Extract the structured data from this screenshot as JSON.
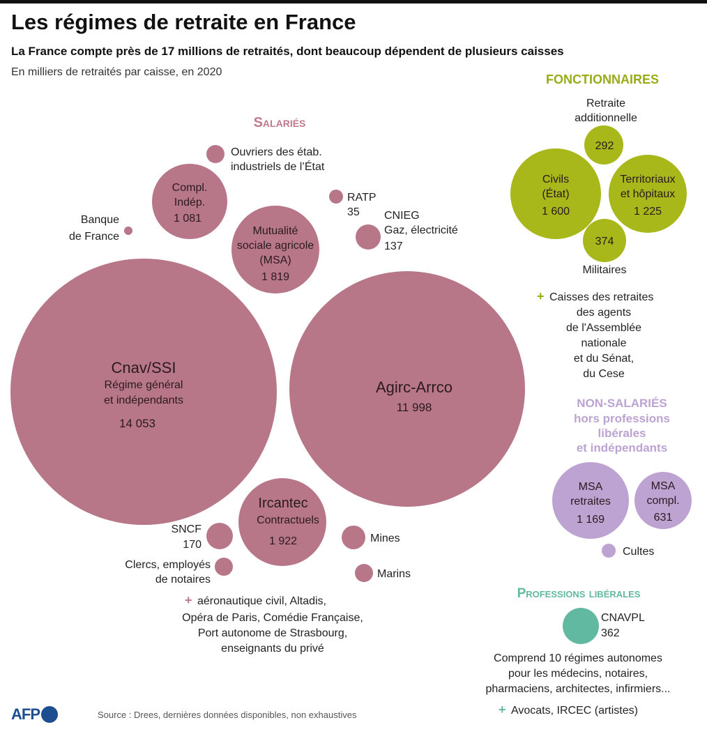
{
  "header": {
    "title": "Les régimes de retraite en France",
    "subtitle": "La France compte près de 17 millions de retraités, dont beaucoup dépendent de plusieurs caisses",
    "unit": "En milliers de retraités par caisse, en 2020"
  },
  "footer": {
    "source": "Source : Drees, dernières données disponibles, non exhaustives",
    "logo": "AFP"
  },
  "colors": {
    "salaries": "#b87789",
    "fonctionnaires": "#a8b719",
    "non_salaries": "#bca3d2",
    "liberales": "#62b9a1",
    "plus_salaries": "#c07a8c",
    "plus_fonctionnaires": "#9aab18",
    "plus_liberales": "#62b9a1"
  },
  "chart_data": {
    "type": "bubble",
    "title": "Les régimes de retraite en France",
    "unit": "milliers de retraités",
    "groups": [
      {
        "name": "Salariés",
        "items": [
          {
            "label": "Cnav/SSI",
            "detail": "Régime général et indépendants",
            "value": 14053
          },
          {
            "label": "Agirc-Arrco",
            "value": 11998
          },
          {
            "label": "Ircantec",
            "detail": "Contractuels",
            "value": 1922
          },
          {
            "label": "Mutualité sociale agricole (MSA)",
            "value": 1819
          },
          {
            "label": "Compl. Indép.",
            "value": 1081
          },
          {
            "label": "SNCF",
            "value": 170
          },
          {
            "label": "CNIEG Gaz, électricité",
            "value": 137
          },
          {
            "label": "RATP",
            "value": 35
          },
          {
            "label": "Ouvriers des étab. industriels de l’État",
            "value": null
          },
          {
            "label": "Banque de France",
            "value": null
          },
          {
            "label": "Clercs, employés de notaires",
            "value": null
          },
          {
            "label": "Mines",
            "value": null
          },
          {
            "label": "Marins",
            "value": null
          }
        ],
        "note": "aéronautique civil, Altadis, Opéra de Paris, Comédie Française, Port autonome de Strasbourg, enseignants du privé"
      },
      {
        "name": "Fonctionnaires",
        "items": [
          {
            "label": "Civils (État)",
            "value": 1600
          },
          {
            "label": "Territoriaux et hôpitaux",
            "value": 1225
          },
          {
            "label": "Militaires",
            "value": 374
          },
          {
            "label": "Retraite additionnelle",
            "value": 292
          }
        ],
        "note": "Caisses des retraites des agents de l'Assemblée nationale et du Sénat, du Cese"
      },
      {
        "name": "Non-salariés hors professions libérales et indépendants",
        "items": [
          {
            "label": "MSA retraites",
            "value": 1169
          },
          {
            "label": "MSA compl.",
            "value": 631
          },
          {
            "label": "Cultes",
            "value": null
          }
        ]
      },
      {
        "name": "Professions libérales",
        "items": [
          {
            "label": "CNAVPL",
            "value": 362
          }
        ],
        "note": "Comprend 10 régimes autonomes pour les médecins, notaires, pharmaciens, architectes, infirmiers...",
        "note2": "Avocats, IRCEC (artistes)"
      }
    ]
  },
  "texts": {
    "sal_heading": "Salariés",
    "fonc_heading": "FONCTIONNAIRES",
    "ns_heading_1": "NON-SALARIÉS",
    "ns_heading_2": "hors professions",
    "ns_heading_3": "libérales",
    "ns_heading_4": "et indépendants",
    "pl_heading": "Professions libérales",
    "cnav_name": "Cnav/SSI",
    "cnav_d1": "Régime général",
    "cnav_d2": "et indépendants",
    "cnav_val": "14 053",
    "agirc_name": "Agirc-Arrco",
    "agirc_val": "11 998",
    "msa_1": "Mutualité",
    "msa_2": "sociale agricole",
    "msa_3": "(MSA)",
    "msa_val": "1 819",
    "compl_1": "Compl.",
    "compl_2": "Indép.",
    "compl_val": "1 081",
    "ircantec_name": "Ircantec",
    "ircantec_d": "Contractuels",
    "ircantec_val": "1 922",
    "ouvriers_1": "Ouvriers des étab.",
    "ouvriers_2": "industriels de l’État",
    "ratp_name": "RATP",
    "ratp_val": "35",
    "cnieg_1": "CNIEG",
    "cnieg_2": "Gaz, électricité",
    "cnieg_val": "137",
    "bdf_1": "Banque",
    "bdf_2": "de France",
    "sncf_name": "SNCF",
    "sncf_val": "170",
    "clercs_1": "Clercs, employés",
    "clercs_2": "de notaires",
    "mines": "Mines",
    "marins": "Marins",
    "sal_note_1": "aéronautique civil, Altadis,",
    "sal_note_2": "Opéra de Paris, Comédie Française,",
    "sal_note_3": "Port autonome de Strasbourg,",
    "sal_note_4": "enseignants du privé",
    "ret_add_1": "Retraite",
    "ret_add_2": "additionnelle",
    "ret_add_val": "292",
    "civils_1": "Civils",
    "civils_2": "(État)",
    "civils_val": "1 600",
    "terr_1": "Territoriaux",
    "terr_2": "et hôpitaux",
    "terr_val": "1 225",
    "mil_val": "374",
    "mil_name": "Militaires",
    "fonc_note_1": "Caisses des retraites",
    "fonc_note_2": "des agents",
    "fonc_note_3": "de l'Assemblée",
    "fonc_note_4": "nationale",
    "fonc_note_5": "et du Sénat,",
    "fonc_note_6": "du Cese",
    "msar_1": "MSA",
    "msar_2": "retraites",
    "msar_val": "1 169",
    "msac_1": "MSA",
    "msac_2": "compl.",
    "msac_val": "631",
    "cultes": "Cultes",
    "cnavpl_name": "CNAVPL",
    "cnavpl_val": "362",
    "pl_note_1": "Comprend 10 régimes autonomes",
    "pl_note_2": "pour les médecins, notaires,",
    "pl_note_3": "pharmaciens, architectes, infirmiers...",
    "pl_note_4": "Avocats, IRCEC (artistes)",
    "plus": "+"
  }
}
